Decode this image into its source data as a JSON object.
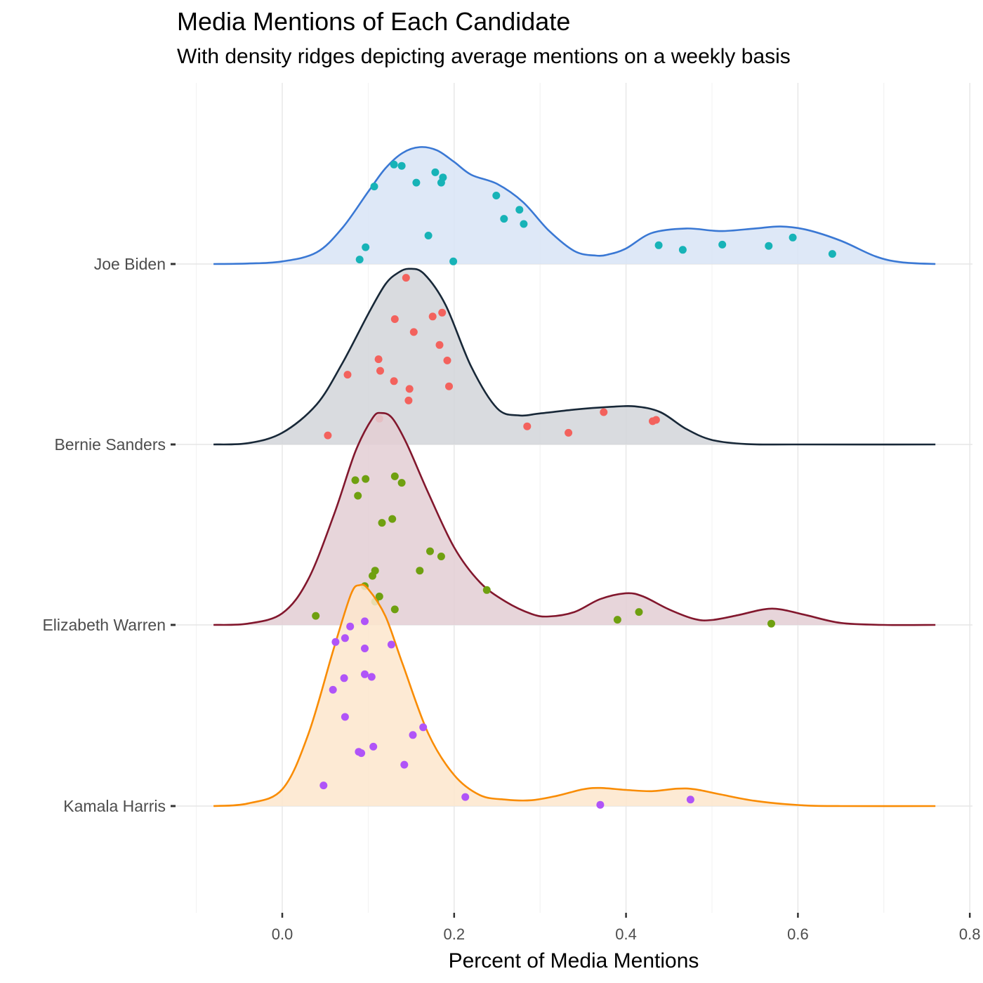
{
  "title": "Media Mentions of Each Candidate",
  "subtitle": "With density ridges depicting average mentions on a weekly basis",
  "chart_data": {
    "type": "ridgeline",
    "title": "Media Mentions of Each Candidate",
    "subtitle": "With density ridges depicting average mentions on a weekly basis",
    "xlabel": "Percent of Media Mentions",
    "ylabel": "",
    "xlim": [
      -0.1,
      0.8
    ],
    "x_ticks": [
      "0.0",
      "0.2",
      "0.4",
      "0.6",
      "0.8"
    ],
    "x_tick_values": [
      0.0,
      0.2,
      0.4,
      0.6,
      0.8
    ],
    "grid": true,
    "legend": "none",
    "series": [
      {
        "name": "Joe Biden",
        "line_color": "#3a78d4",
        "fill_color": "#d8e4f6",
        "point_color": "#17b3b7",
        "density": [
          [
            -0.08,
            0
          ],
          [
            -0.04,
            0.004
          ],
          [
            0,
            0.02
          ],
          [
            0.04,
            0.09
          ],
          [
            0.07,
            0.28
          ],
          [
            0.1,
            0.56
          ],
          [
            0.12,
            0.74
          ],
          [
            0.14,
            0.86
          ],
          [
            0.16,
            0.905
          ],
          [
            0.18,
            0.88
          ],
          [
            0.2,
            0.79
          ],
          [
            0.22,
            0.69
          ],
          [
            0.25,
            0.62
          ],
          [
            0.28,
            0.48
          ],
          [
            0.31,
            0.26
          ],
          [
            0.34,
            0.1
          ],
          [
            0.365,
            0.065
          ],
          [
            0.38,
            0.075
          ],
          [
            0.4,
            0.12
          ],
          [
            0.43,
            0.24
          ],
          [
            0.47,
            0.275
          ],
          [
            0.51,
            0.255
          ],
          [
            0.55,
            0.275
          ],
          [
            0.58,
            0.29
          ],
          [
            0.61,
            0.265
          ],
          [
            0.65,
            0.18
          ],
          [
            0.69,
            0.06
          ],
          [
            0.72,
            0.014
          ],
          [
            0.76,
            0
          ]
        ],
        "points": [
          [
            0.13,
            0.77
          ],
          [
            0.139,
            0.76
          ],
          [
            0.178,
            0.71
          ],
          [
            0.187,
            0.67
          ],
          [
            0.185,
            0.63
          ],
          [
            0.156,
            0.63
          ],
          [
            0.107,
            0.6
          ],
          [
            0.249,
            0.53
          ],
          [
            0.276,
            0.42
          ],
          [
            0.258,
            0.35
          ],
          [
            0.281,
            0.31
          ],
          [
            0.17,
            0.22
          ],
          [
            0.438,
            0.145
          ],
          [
            0.466,
            0.11
          ],
          [
            0.512,
            0.15
          ],
          [
            0.566,
            0.14
          ],
          [
            0.594,
            0.205
          ],
          [
            0.64,
            0.078
          ],
          [
            0.097,
            0.13
          ],
          [
            0.09,
            0.035
          ],
          [
            0.199,
            0.02
          ]
        ]
      },
      {
        "name": "Bernie Sanders",
        "line_color": "#182838",
        "fill_color": "#d2d5d9",
        "point_color": "#f3625d",
        "density": [
          [
            -0.08,
            0
          ],
          [
            -0.04,
            0.01
          ],
          [
            0,
            0.09
          ],
          [
            0.04,
            0.31
          ],
          [
            0.07,
            0.63
          ],
          [
            0.1,
            1.01
          ],
          [
            0.12,
            1.24
          ],
          [
            0.135,
            1.33
          ],
          [
            0.148,
            1.36
          ],
          [
            0.165,
            1.32
          ],
          [
            0.19,
            1.08
          ],
          [
            0.22,
            0.6
          ],
          [
            0.25,
            0.28
          ],
          [
            0.275,
            0.225
          ],
          [
            0.3,
            0.24
          ],
          [
            0.34,
            0.27
          ],
          [
            0.38,
            0.29
          ],
          [
            0.41,
            0.295
          ],
          [
            0.44,
            0.25
          ],
          [
            0.47,
            0.12
          ],
          [
            0.5,
            0.035
          ],
          [
            0.54,
            0.003
          ],
          [
            0.6,
            0
          ],
          [
            0.76,
            0
          ]
        ],
        "points": [
          [
            0.144,
            1.29
          ],
          [
            0.186,
            1.02
          ],
          [
            0.175,
            0.99
          ],
          [
            0.131,
            0.97
          ],
          [
            0.153,
            0.87
          ],
          [
            0.183,
            0.77
          ],
          [
            0.192,
            0.65
          ],
          [
            0.112,
            0.66
          ],
          [
            0.114,
            0.57
          ],
          [
            0.076,
            0.54
          ],
          [
            0.13,
            0.49
          ],
          [
            0.148,
            0.43
          ],
          [
            0.194,
            0.45
          ],
          [
            0.147,
            0.34
          ],
          [
            0.113,
            0.2
          ],
          [
            0.374,
            0.25
          ],
          [
            0.435,
            0.19
          ],
          [
            0.431,
            0.18
          ],
          [
            0.285,
            0.14
          ],
          [
            0.333,
            0.09
          ],
          [
            0.053,
            0.07
          ]
        ]
      },
      {
        "name": "Elizabeth Warren",
        "line_color": "#82172d",
        "fill_color": "#e3ced3",
        "point_color": "#6fa010",
        "density": [
          [
            -0.08,
            0
          ],
          [
            -0.04,
            0.01
          ],
          [
            0,
            0.09
          ],
          [
            0.03,
            0.35
          ],
          [
            0.06,
            0.85
          ],
          [
            0.085,
            1.34
          ],
          [
            0.105,
            1.6
          ],
          [
            0.115,
            1.64
          ],
          [
            0.128,
            1.6
          ],
          [
            0.145,
            1.4
          ],
          [
            0.17,
            1.02
          ],
          [
            0.2,
            0.6
          ],
          [
            0.23,
            0.33
          ],
          [
            0.26,
            0.18
          ],
          [
            0.29,
            0.085
          ],
          [
            0.31,
            0.065
          ],
          [
            0.34,
            0.1
          ],
          [
            0.37,
            0.2
          ],
          [
            0.4,
            0.245
          ],
          [
            0.42,
            0.22
          ],
          [
            0.45,
            0.12
          ],
          [
            0.48,
            0.045
          ],
          [
            0.5,
            0.038
          ],
          [
            0.53,
            0.075
          ],
          [
            0.56,
            0.12
          ],
          [
            0.58,
            0.12
          ],
          [
            0.61,
            0.075
          ],
          [
            0.65,
            0.015
          ],
          [
            0.7,
            0
          ],
          [
            0.76,
            0
          ]
        ],
        "points": [
          [
            0.131,
            1.15
          ],
          [
            0.139,
            1.1
          ],
          [
            0.097,
            1.13
          ],
          [
            0.085,
            1.12
          ],
          [
            0.088,
            1.0
          ],
          [
            0.116,
            0.79
          ],
          [
            0.128,
            0.82
          ],
          [
            0.172,
            0.57
          ],
          [
            0.185,
            0.53
          ],
          [
            0.16,
            0.42
          ],
          [
            0.108,
            0.42
          ],
          [
            0.105,
            0.38
          ],
          [
            0.096,
            0.3
          ],
          [
            0.238,
            0.27
          ],
          [
            0.113,
            0.22
          ],
          [
            0.108,
            0.18
          ],
          [
            0.131,
            0.12
          ],
          [
            0.039,
            0.07
          ],
          [
            0.39,
            0.04
          ],
          [
            0.415,
            0.1
          ],
          [
            0.569,
            0.01
          ]
        ]
      },
      {
        "name": "Kamala Harris",
        "line_color": "#f98c04",
        "fill_color": "#fde6cc",
        "point_color": "#b054f8",
        "density": [
          [
            -0.08,
            0
          ],
          [
            -0.04,
            0.02
          ],
          [
            0,
            0.13
          ],
          [
            0.03,
            0.55
          ],
          [
            0.06,
            1.22
          ],
          [
            0.08,
            1.64
          ],
          [
            0.09,
            1.71
          ],
          [
            0.1,
            1.68
          ],
          [
            0.12,
            1.47
          ],
          [
            0.14,
            1.1
          ],
          [
            0.17,
            0.56
          ],
          [
            0.2,
            0.24
          ],
          [
            0.23,
            0.085
          ],
          [
            0.26,
            0.05
          ],
          [
            0.29,
            0.045
          ],
          [
            0.32,
            0.08
          ],
          [
            0.35,
            0.13
          ],
          [
            0.37,
            0.14
          ],
          [
            0.4,
            0.125
          ],
          [
            0.43,
            0.115
          ],
          [
            0.46,
            0.135
          ],
          [
            0.48,
            0.13
          ],
          [
            0.51,
            0.09
          ],
          [
            0.55,
            0.04
          ],
          [
            0.6,
            0.008
          ],
          [
            0.65,
            0
          ],
          [
            0.76,
            0
          ]
        ],
        "points": [
          [
            0.096,
            1.43
          ],
          [
            0.079,
            1.39
          ],
          [
            0.073,
            1.3
          ],
          [
            0.062,
            1.27
          ],
          [
            0.096,
            1.22
          ],
          [
            0.127,
            1.25
          ],
          [
            0.096,
            1.02
          ],
          [
            0.104,
            1.0
          ],
          [
            0.072,
            0.99
          ],
          [
            0.059,
            0.9
          ],
          [
            0.073,
            0.69
          ],
          [
            0.164,
            0.61
          ],
          [
            0.152,
            0.55
          ],
          [
            0.106,
            0.46
          ],
          [
            0.089,
            0.42
          ],
          [
            0.092,
            0.41
          ],
          [
            0.142,
            0.32
          ],
          [
            0.048,
            0.16
          ],
          [
            0.213,
            0.07
          ],
          [
            0.37,
            0.01
          ],
          [
            0.475,
            0.05
          ]
        ]
      }
    ]
  }
}
